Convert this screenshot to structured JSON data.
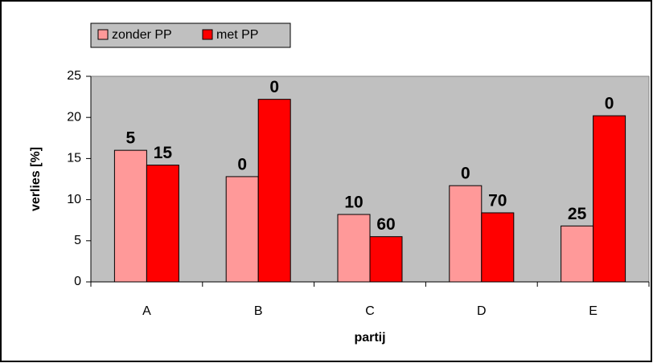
{
  "chart_data": {
    "type": "bar",
    "categories": [
      "A",
      "B",
      "C",
      "D",
      "E"
    ],
    "series": [
      {
        "name": "zonder PP",
        "color": "#ff9999",
        "values": [
          16.0,
          12.8,
          8.2,
          11.7,
          6.8
        ],
        "labels": [
          "5",
          "0",
          "10",
          "0",
          "25"
        ]
      },
      {
        "name": "met PP",
        "color": "#ff0000",
        "values": [
          14.2,
          22.2,
          5.5,
          8.4,
          20.2
        ],
        "labels": [
          "15",
          "0",
          "60",
          "70",
          "0"
        ]
      }
    ],
    "ylim": [
      0,
      25
    ],
    "yticks": [
      0,
      5,
      10,
      15,
      20,
      25
    ],
    "xlabel": "partij",
    "ylabel": "verlies [%]",
    "plot_background": "#c0c0c0"
  }
}
